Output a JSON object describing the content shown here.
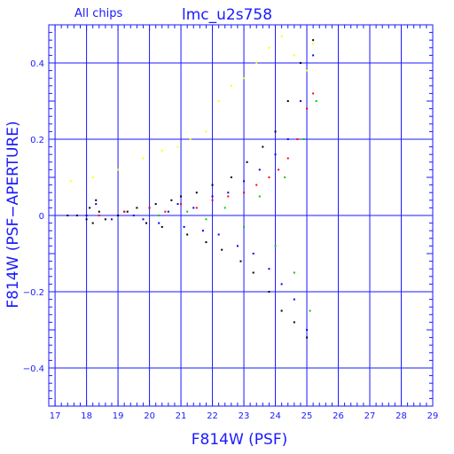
{
  "chart_data": {
    "type": "scatter",
    "title": "lmc_u2s758",
    "subtitle": "All chips",
    "xlabel": "F814W (PSF)",
    "ylabel": "F814W (PSF−APERTURE)",
    "xlim": [
      16.8,
      29
    ],
    "ylim": [
      -0.5,
      0.5
    ],
    "grid": true,
    "x_ticks": [
      17,
      18,
      19,
      20,
      21,
      22,
      23,
      24,
      25,
      26,
      27,
      28,
      29
    ],
    "y_ticks": [
      -0.4,
      -0.2,
      0,
      0.2,
      0.4
    ],
    "y_tick_labels": [
      "−0.4",
      "−0.2",
      "0",
      "0.2",
      "0.4"
    ],
    "colors": {
      "axis": "#1a1aff",
      "chip_black": "#000000",
      "chip_blue": "#0000ff",
      "chip_red": "#ff0000",
      "chip_green": "#00cc00",
      "chip_yellow": "#ffff00"
    },
    "series": [
      {
        "color": "#000000",
        "x": [
          17.4,
          17.7,
          18.0,
          18.1,
          18.2,
          18.3,
          18.4,
          18.6,
          19.0,
          19.3,
          19.6,
          19.9,
          20.2,
          20.4,
          20.7,
          21.0,
          21.2,
          21.5,
          21.8,
          22.0,
          22.3,
          22.6,
          22.9,
          23.1,
          23.3,
          23.6,
          23.8,
          24.0,
          24.2,
          24.4,
          24.6,
          24.8,
          25.0,
          25.2
        ],
        "y": [
          0.0,
          0.0,
          -0.01,
          0.02,
          -0.02,
          0.04,
          0.01,
          -0.01,
          0.0,
          0.01,
          0.02,
          -0.02,
          0.03,
          -0.03,
          0.04,
          0.05,
          -0.05,
          0.06,
          -0.07,
          0.08,
          -0.09,
          0.1,
          -0.12,
          0.14,
          -0.15,
          0.18,
          -0.2,
          0.22,
          -0.25,
          0.3,
          -0.28,
          0.4,
          -0.32,
          0.46
        ]
      },
      {
        "color": "#0000ff",
        "x": [
          18.0,
          18.3,
          18.8,
          19.2,
          19.5,
          19.8,
          20.0,
          20.3,
          20.6,
          20.9,
          21.1,
          21.4,
          21.7,
          22.0,
          22.2,
          22.5,
          22.8,
          23.0,
          23.3,
          23.5,
          23.8,
          24.0,
          24.2,
          24.4,
          24.6,
          24.8,
          25.0,
          25.2
        ],
        "y": [
          0.0,
          0.03,
          -0.01,
          0.01,
          0.0,
          -0.01,
          0.02,
          -0.02,
          0.01,
          0.03,
          -0.03,
          0.02,
          -0.04,
          0.05,
          -0.05,
          0.06,
          -0.08,
          0.09,
          -0.1,
          0.12,
          -0.14,
          0.16,
          -0.18,
          0.2,
          -0.22,
          0.3,
          -0.3,
          0.42
        ]
      },
      {
        "color": "#ff0000",
        "x": [
          18.4,
          19.2,
          20.0,
          20.5,
          21.0,
          21.5,
          22.0,
          22.5,
          23.0,
          23.4,
          23.8,
          24.1,
          24.4,
          24.7,
          25.0,
          25.2
        ],
        "y": [
          0.0,
          0.01,
          0.02,
          0.01,
          0.03,
          0.02,
          0.04,
          0.05,
          0.06,
          0.08,
          0.1,
          0.12,
          0.15,
          0.2,
          0.28,
          0.32
        ]
      },
      {
        "color": "#00cc00",
        "x": [
          20.3,
          21.2,
          21.8,
          22.4,
          23.0,
          23.5,
          24.0,
          24.3,
          24.6,
          24.9,
          25.1,
          25.3
        ],
        "y": [
          0.0,
          0.01,
          -0.01,
          0.02,
          -0.03,
          0.05,
          -0.08,
          0.1,
          -0.15,
          0.2,
          -0.25,
          0.3
        ]
      },
      {
        "color": "#ffff00",
        "x": [
          17.5,
          18.2,
          19.0,
          19.8,
          20.4,
          20.9,
          21.3,
          21.8,
          22.2,
          22.6,
          23.0,
          23.4,
          23.8,
          24.2,
          24.6,
          25.0,
          25.2
        ],
        "y": [
          0.09,
          0.1,
          0.12,
          0.15,
          0.17,
          0.18,
          0.2,
          0.22,
          0.3,
          0.34,
          0.36,
          0.4,
          0.44,
          0.47,
          0.42,
          0.38,
          0.45
        ]
      }
    ]
  }
}
